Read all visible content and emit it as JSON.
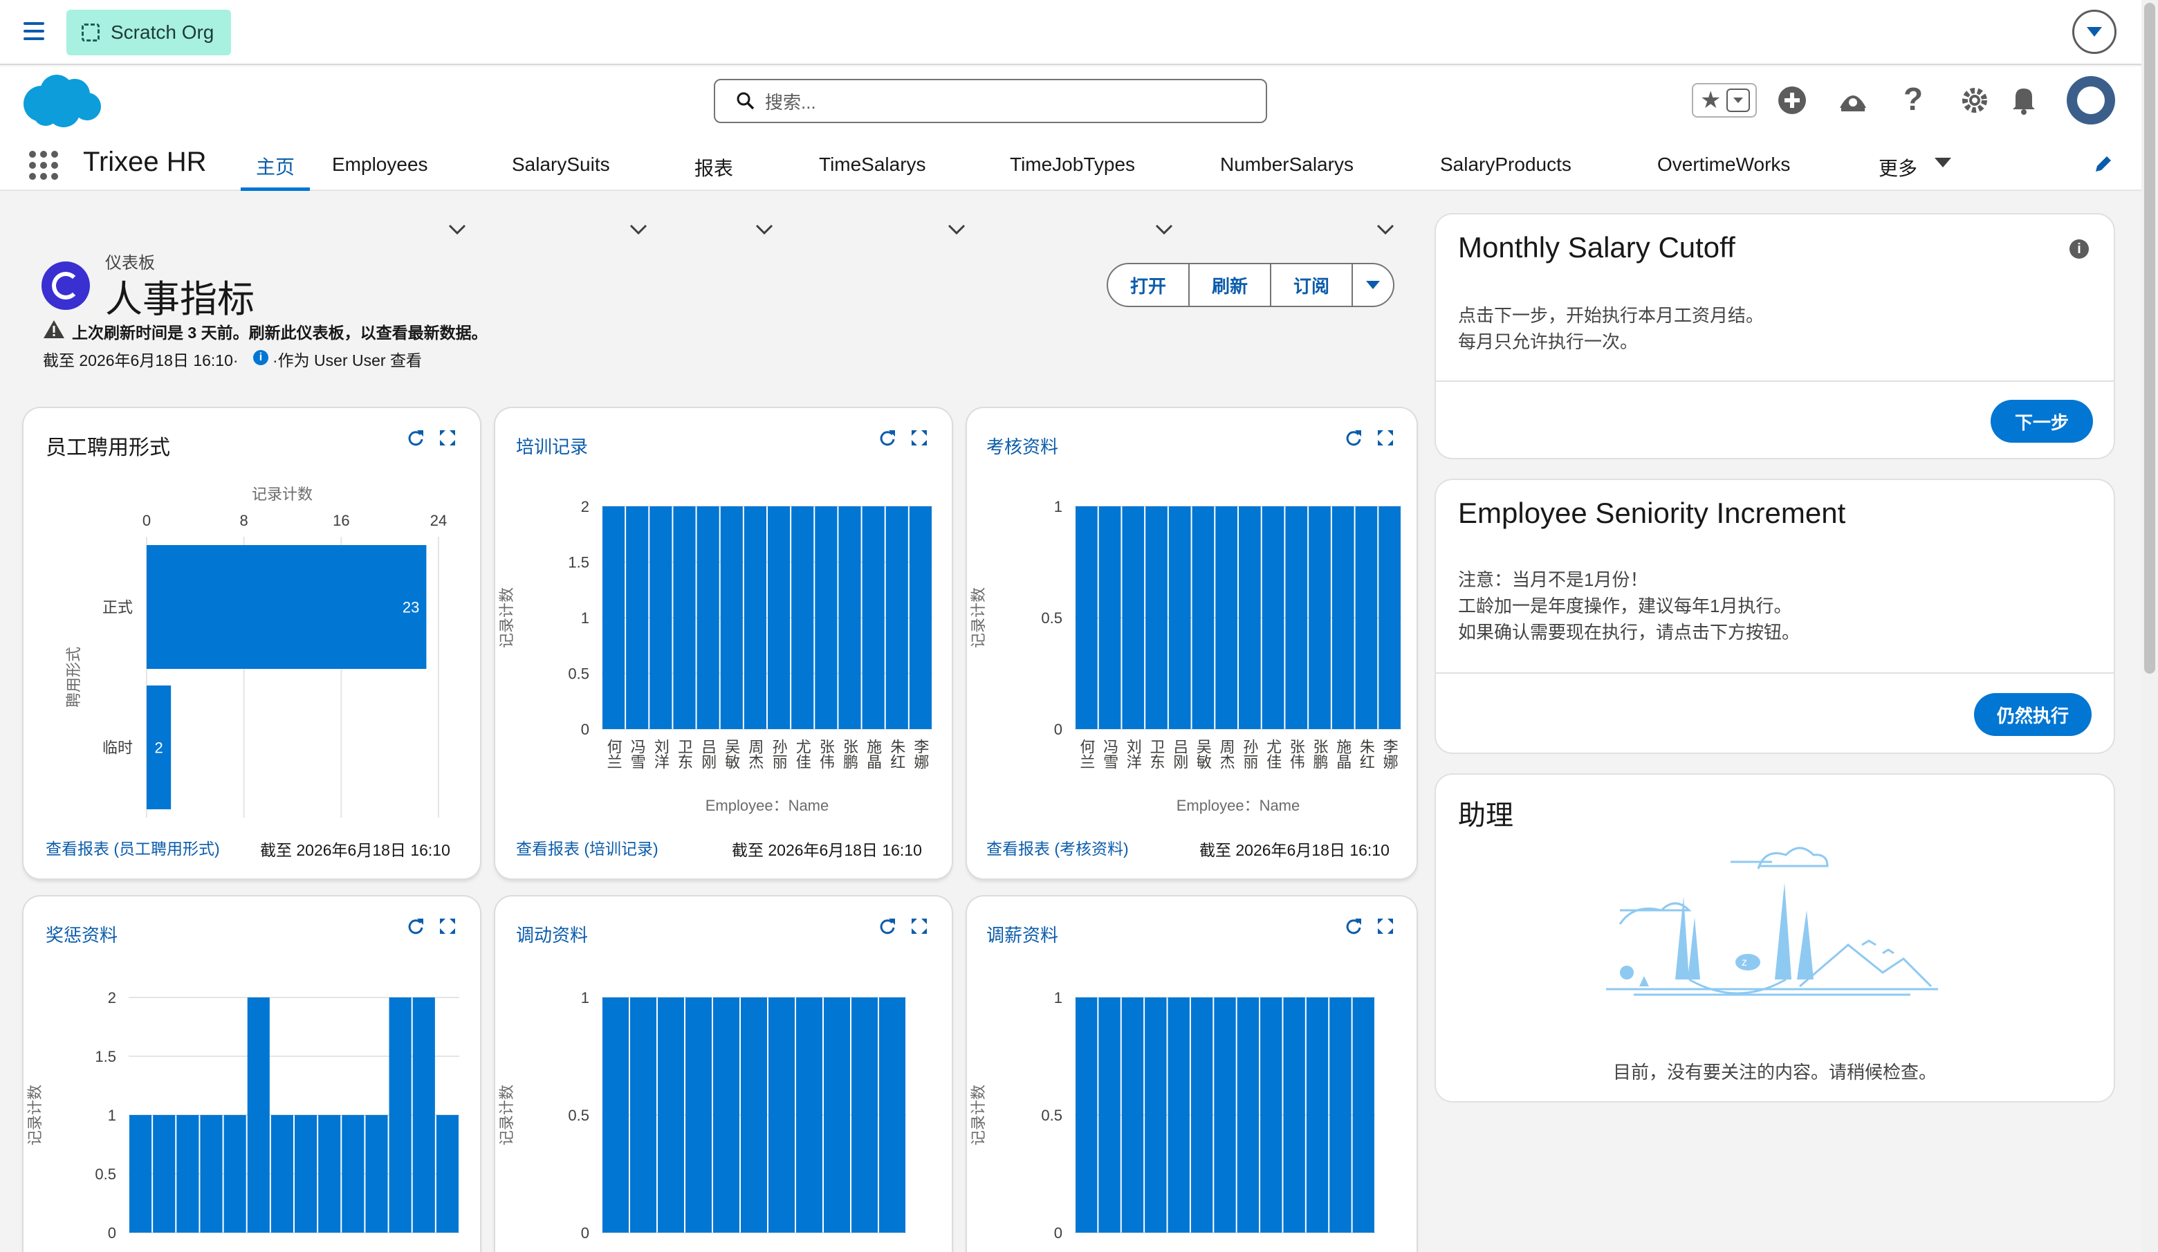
{
  "topbar": {
    "org_label": "Scratch Org"
  },
  "header": {
    "search_placeholder": "搜索...",
    "app_name": "Trixee HR",
    "nav": [
      {
        "label": "主页",
        "active": true,
        "dropdown": false
      },
      {
        "label": "Employees",
        "dropdown": true
      },
      {
        "label": "SalarySuits",
        "dropdown": true
      },
      {
        "label": "报表",
        "dropdown": true
      },
      {
        "label": "TimeSalarys",
        "dropdown": true
      },
      {
        "label": "TimeJobTypes",
        "dropdown": true
      },
      {
        "label": "NumberSalarys",
        "dropdown": true
      },
      {
        "label": "SalaryProducts",
        "dropdown": true
      },
      {
        "label": "OvertimeWorks",
        "dropdown": true
      },
      {
        "label": "更多",
        "dropdown": true
      }
    ]
  },
  "dashboard": {
    "kind": "仪表板",
    "title": "人事指标",
    "warning": "上次刷新时间是 3 天前。刷新此仪表板，以查看最新数据。",
    "asof": "截至 2026年6月18日 16:10·",
    "viewer": "·作为 User User 查看",
    "buttons": {
      "open": "打开",
      "refresh": "刷新",
      "subscribe": "订阅"
    }
  },
  "widgets": [
    {
      "title": "员工聘用形式",
      "footer_link": "查看报表 (员工聘用形式)",
      "footer_time": "截至 2026年6月18日 16:10"
    },
    {
      "title": "培训记录",
      "footer_link": "查看报表 (培训记录)",
      "footer_time": "截至 2026年6月18日 16:10"
    },
    {
      "title": "考核资料",
      "footer_link": "查看报表 (考核资料)",
      "footer_time": "截至 2026年6月18日 16:10"
    },
    {
      "title": "奖惩资料"
    },
    {
      "title": "调动资料"
    },
    {
      "title": "调薪资料"
    }
  ],
  "chart_data": [
    {
      "type": "bar",
      "orientation": "horizontal",
      "title": "员工聘用形式",
      "xlabel": "记录计数",
      "ylabel": "聘用形式",
      "categories": [
        "正式",
        "临时"
      ],
      "values": [
        23,
        2
      ],
      "xticks": [
        "0",
        "8",
        "16",
        "24"
      ],
      "xlim": [
        0,
        24
      ]
    },
    {
      "type": "bar",
      "title": "培训记录",
      "xlabel": "Employee：Name",
      "ylabel": "记录计数",
      "categories": [
        "何兰",
        "冯雪",
        "刘洋",
        "卫东",
        "吕刚",
        "吴敏",
        "周杰",
        "孙丽",
        "尤佳",
        "张伟",
        "张鹏",
        "施晶",
        "朱红",
        "李娜"
      ],
      "values": [
        2,
        2,
        2,
        2,
        2,
        2,
        2,
        2,
        2,
        2,
        2,
        2,
        2,
        2
      ],
      "yticks": [
        "0",
        "0.5",
        "1",
        "1.5",
        "2"
      ],
      "ylim": [
        0,
        2
      ]
    },
    {
      "type": "bar",
      "title": "考核资料",
      "xlabel": "Employee：Name",
      "ylabel": "记录计数",
      "categories": [
        "何兰",
        "冯雪",
        "刘洋",
        "卫东",
        "吕刚",
        "吴敏",
        "周杰",
        "孙丽",
        "尤佳",
        "张伟",
        "张鹏",
        "施晶",
        "朱红",
        "李娜"
      ],
      "values": [
        1,
        1,
        1,
        1,
        1,
        1,
        1,
        1,
        1,
        1,
        1,
        1,
        1,
        1
      ],
      "yticks": [
        "0",
        "0.5",
        "1"
      ],
      "ylim": [
        0,
        1
      ]
    },
    {
      "type": "bar",
      "title": "奖惩资料",
      "ylabel": "记录计数",
      "values": [
        1,
        1,
        1,
        1,
        1,
        2,
        1,
        1,
        1,
        1,
        1,
        2,
        2,
        1
      ],
      "yticks": [
        "0",
        "0.5",
        "1",
        "1.5",
        "2"
      ],
      "ylim": [
        0,
        2
      ]
    },
    {
      "type": "bar",
      "title": "调动资料",
      "ylabel": "记录计数",
      "values": [
        1,
        1,
        1,
        1,
        1,
        1,
        1,
        1,
        1,
        1,
        1
      ],
      "yticks": [
        "0",
        "0.5",
        "1"
      ],
      "ylim": [
        0,
        1
      ]
    },
    {
      "type": "bar",
      "title": "调薪资料",
      "ylabel": "记录计数",
      "values": [
        1,
        1,
        1,
        1,
        1,
        1,
        1,
        1,
        1,
        1,
        1,
        1,
        1
      ],
      "yticks": [
        "0",
        "0.5",
        "1"
      ],
      "ylim": [
        0,
        1
      ]
    }
  ],
  "sidebar": {
    "cutoff": {
      "title": "Monthly Salary Cutoff",
      "line1": "点击下一步，开始执行本月工资月结。",
      "line2": "每月只允许执行一次。",
      "button": "下一步"
    },
    "seniority": {
      "title": "Employee Seniority Increment",
      "line1": "注意：当月不是1月份！",
      "line2": "工龄加一是年度操作，建议每年1月执行。",
      "line3": "如果确认需要现在执行，请点击下方按钮。",
      "button": "仍然执行"
    },
    "assistant": {
      "title": "助理",
      "empty_text": "目前，没有要关注的内容。请稍候检查。"
    }
  },
  "colors": {
    "bar": "#0176d3",
    "brand": "#0176d3",
    "link": "#0b5cab"
  }
}
